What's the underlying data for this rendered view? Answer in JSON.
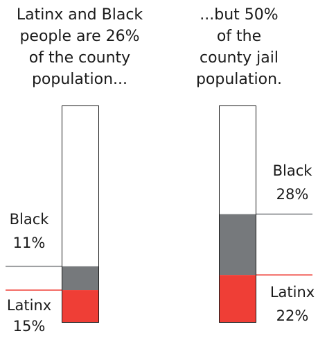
{
  "left_heading": "Latinx and Black\npeople are 26%\nof the county\npopulation...",
  "right_heading": "...but 50%\nof the\ncounty jail\npopulation.",
  "colors": {
    "latinx": "#ef3e36",
    "black": "#76797c",
    "outline": "#1a1a1a"
  },
  "chart_data": [
    {
      "type": "bar",
      "stacked": true,
      "title": "Latinx and Black people are 26% of the county population...",
      "ylim": [
        0,
        100
      ],
      "series": [
        {
          "name": "Latinx",
          "value": 15,
          "label_name": "Latinx",
          "label_value": "15%"
        },
        {
          "name": "Black",
          "value": 11,
          "label_name": "Black",
          "label_value": "11%"
        }
      ]
    },
    {
      "type": "bar",
      "stacked": true,
      "title": "...but 50% of the county jail population.",
      "ylim": [
        0,
        100
      ],
      "series": [
        {
          "name": "Latinx",
          "value": 22,
          "label_name": "Latinx",
          "label_value": "22%"
        },
        {
          "name": "Black",
          "value": 28,
          "label_name": "Black",
          "label_value": "28%"
        }
      ]
    }
  ]
}
